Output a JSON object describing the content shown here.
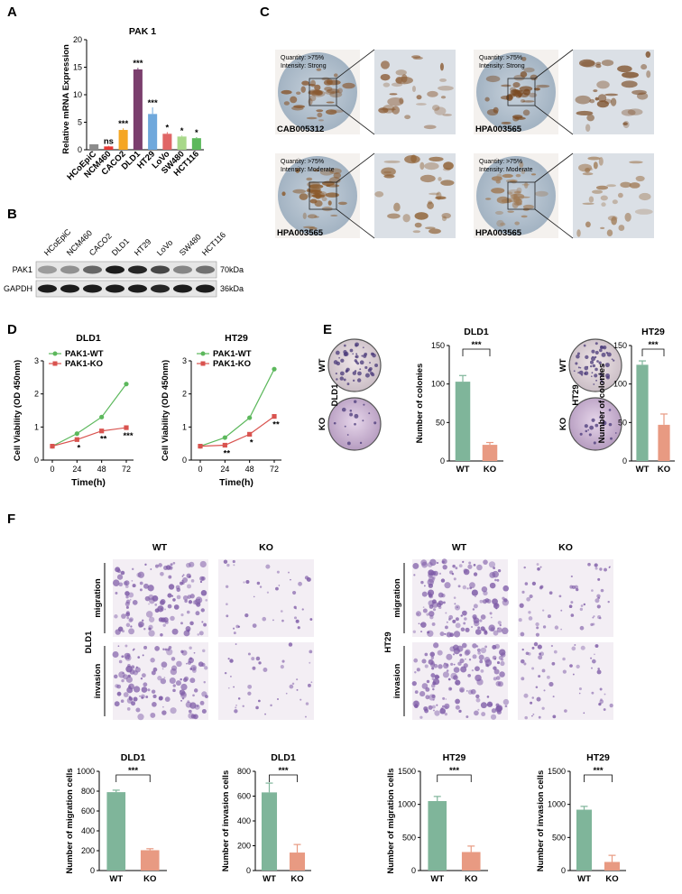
{
  "panels": {
    "A": {
      "letter": "A",
      "chart_data": {
        "type": "bar",
        "title": "PAK 1",
        "ylabel": "Relative mRNA Expression",
        "ylim": [
          0,
          20
        ],
        "yticks": [
          0,
          5,
          10,
          15,
          20
        ],
        "categories": [
          "HCoEpiC",
          "NCM460",
          "CACO2",
          "DLD1",
          "HT29",
          "LoVo",
          "SW480",
          "HCT116"
        ],
        "values": [
          1.0,
          0.6,
          3.6,
          14.6,
          6.5,
          2.9,
          2.4,
          2.1
        ],
        "errors": [
          0,
          0.1,
          0.3,
          0.3,
          1.2,
          0.3,
          0.2,
          0.2
        ],
        "significance": [
          "",
          "ns",
          "***",
          "***",
          "***",
          "*",
          "*",
          "*"
        ],
        "colors": [
          "#8c8c8c",
          "#e53935",
          "#f5a623",
          "#7b3f6e",
          "#6fa8dc",
          "#e06666",
          "#a8d88a",
          "#5cb85c"
        ]
      }
    },
    "B": {
      "letter": "B",
      "lanes": [
        "HCoEpiC",
        "NCM460",
        "CACO2",
        "DLD1",
        "HT29",
        "LoVo",
        "SW480",
        "HCT116"
      ],
      "rows": [
        {
          "label": "PAK1",
          "kda": "70kDa",
          "intensity": [
            0.35,
            0.4,
            0.6,
            0.95,
            0.9,
            0.75,
            0.45,
            0.55
          ]
        },
        {
          "label": "GAPDH",
          "kda": "36kDa",
          "intensity": [
            0.95,
            0.95,
            0.95,
            0.95,
            0.95,
            0.9,
            0.95,
            0.95
          ]
        }
      ]
    },
    "C": {
      "letter": "C",
      "cores": [
        {
          "antibody": "CAB005312",
          "quantity": "Quantity: >75%",
          "intensity": "Intensity: Strong"
        },
        {
          "antibody": "HPA003565",
          "quantity": "Quantity: >75%",
          "intensity": "Intensity: Strong"
        },
        {
          "antibody": "HPA003565",
          "quantity": "Quantity: >75%",
          "intensity": "Intensity: Moderate"
        },
        {
          "antibody": "HPA003565",
          "quantity": "Quantity: >75%",
          "intensity": "Intensity: Moderate"
        }
      ]
    },
    "D": {
      "letter": "D",
      "chart_data": [
        {
          "type": "line",
          "title": "DLD1",
          "xlabel": "Time(h)",
          "ylabel": "Cell Viability (OD 450nm)",
          "x": [
            0,
            24,
            48,
            72
          ],
          "ylim": [
            0,
            3
          ],
          "yticks": [
            0,
            1,
            2,
            3
          ],
          "series": [
            {
              "name": "PAK1-WT",
              "values": [
                0.42,
                0.8,
                1.3,
                2.3
              ],
              "color": "#5cb85c"
            },
            {
              "name": "PAK1-KO",
              "values": [
                0.42,
                0.62,
                0.88,
                0.98
              ],
              "color": "#d9534f"
            }
          ],
          "significance": [
            "",
            "*",
            "**",
            "***"
          ]
        },
        {
          "type": "line",
          "title": "HT29",
          "xlabel": "Time(h)",
          "ylabel": "Cell Viability (OD 450nm)",
          "x": [
            0,
            24,
            48,
            72
          ],
          "ylim": [
            0,
            3
          ],
          "yticks": [
            0,
            1,
            2,
            3
          ],
          "series": [
            {
              "name": "PAK1-WT",
              "values": [
                0.42,
                0.68,
                1.28,
                2.75
              ],
              "color": "#5cb85c"
            },
            {
              "name": "PAK1-KO",
              "values": [
                0.42,
                0.45,
                0.78,
                1.32
              ],
              "color": "#d9534f"
            }
          ],
          "significance": [
            "",
            "**",
            "*",
            "**"
          ]
        }
      ]
    },
    "E": {
      "letter": "E",
      "dish_labels": {
        "wt": "WT",
        "ko": "KO",
        "line1": "DLD1",
        "line2": "HT29"
      },
      "chart_data": [
        {
          "type": "bar",
          "title": "DLD1",
          "ylabel": "Number of colonies",
          "categories": [
            "WT",
            "KO"
          ],
          "values": [
            103,
            21
          ],
          "errors": [
            8,
            3
          ],
          "ylim": [
            0,
            150
          ],
          "yticks": [
            0,
            50,
            100,
            150
          ],
          "significance": "***",
          "colors": [
            "#7fb59a",
            "#e89a82"
          ]
        },
        {
          "type": "bar",
          "title": "HT29",
          "ylabel": "Number of colonies",
          "categories": [
            "WT",
            "KO"
          ],
          "values": [
            125,
            47
          ],
          "errors": [
            5,
            14
          ],
          "ylim": [
            0,
            150
          ],
          "yticks": [
            0,
            50,
            100,
            150
          ],
          "significance": "***",
          "colors": [
            "#7fb59a",
            "#e89a82"
          ]
        }
      ]
    },
    "F": {
      "letter": "F",
      "labels": {
        "wt": "WT",
        "ko": "KO",
        "migration": "migration",
        "invasion": "invasion",
        "line1": "DLD1",
        "line2": "HT29"
      },
      "chart_data": [
        {
          "type": "bar",
          "title": "DLD1",
          "ylabel": "Number of migration cells",
          "categories": [
            "WT",
            "KO"
          ],
          "values": [
            790,
            205
          ],
          "errors": [
            20,
            15
          ],
          "ylim": [
            0,
            1000
          ],
          "yticks": [
            0,
            200,
            400,
            600,
            800,
            1000
          ],
          "significance": "***",
          "colors": [
            "#7fb59a",
            "#e89a82"
          ]
        },
        {
          "type": "bar",
          "title": "DLD1",
          "ylabel": "Number of invasion cells",
          "categories": [
            "WT",
            "KO"
          ],
          "values": [
            630,
            145
          ],
          "errors": [
            75,
            65
          ],
          "ylim": [
            0,
            800
          ],
          "yticks": [
            0,
            200,
            400,
            600,
            800
          ],
          "significance": "***",
          "colors": [
            "#7fb59a",
            "#e89a82"
          ]
        },
        {
          "type": "bar",
          "title": "HT29",
          "ylabel": "Number of migration cells",
          "categories": [
            "WT",
            "KO"
          ],
          "values": [
            1050,
            280
          ],
          "errors": [
            70,
            90
          ],
          "ylim": [
            0,
            1500
          ],
          "yticks": [
            0,
            500,
            1000,
            1500
          ],
          "significance": "***",
          "colors": [
            "#7fb59a",
            "#e89a82"
          ]
        },
        {
          "type": "bar",
          "title": "HT29",
          "ylabel": "Number of invasion cells",
          "categories": [
            "WT",
            "KO"
          ],
          "values": [
            920,
            130
          ],
          "errors": [
            50,
            100
          ],
          "ylim": [
            0,
            1500
          ],
          "yticks": [
            0,
            500,
            1000,
            1500
          ],
          "significance": "***",
          "colors": [
            "#7fb59a",
            "#e89a82"
          ]
        }
      ]
    }
  }
}
